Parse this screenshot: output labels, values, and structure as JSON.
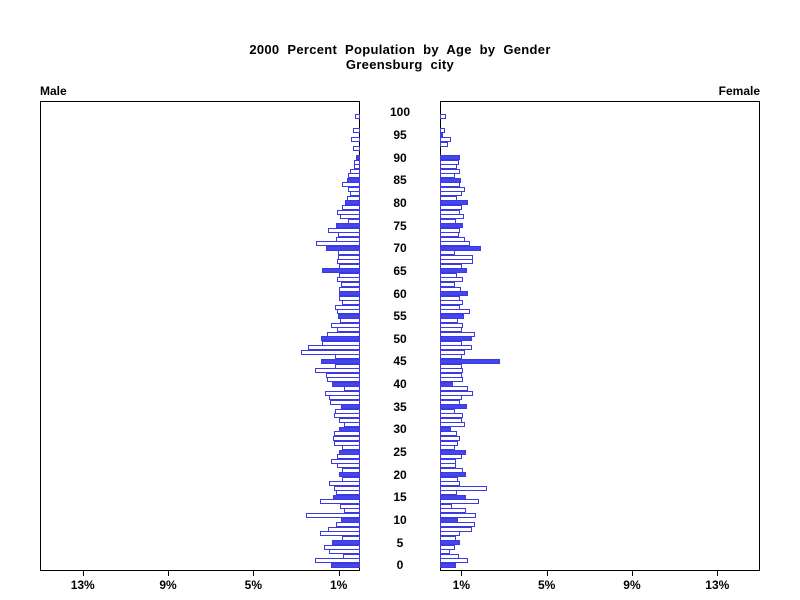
{
  "title": "2000 Percent Population by Age by Gender",
  "subtitle": "Greensburg city",
  "panel_labels": {
    "left": "Male",
    "right": "Female"
  },
  "colors": {
    "bar_fill": "#4545ee",
    "bar_outline": "#3a3ae0",
    "axis": "#000000",
    "background": "#ffffff"
  },
  "chart_data": {
    "type": "bar",
    "variant": "population-pyramid",
    "title": "2000 Percent Population by Age by Gender",
    "subtitle": "Greensburg city",
    "age_axis": {
      "min": 0,
      "max": 100,
      "tick_step": 5,
      "tick_labels": [
        "0",
        "5",
        "10",
        "15",
        "20",
        "25",
        "30",
        "35",
        "40",
        "45",
        "50",
        "55",
        "60",
        "65",
        "70",
        "75",
        "80",
        "85",
        "90",
        "95",
        "100"
      ]
    },
    "percent_axis": {
      "min": 0,
      "max": 15,
      "ticks": [
        1,
        5,
        9,
        13
      ],
      "tick_labels": [
        "1%",
        "5%",
        "9%",
        "13%"
      ]
    },
    "bar_style_note": "ages divisible by 5 are solid filled blue, other ages are white with blue outline",
    "series": [
      {
        "name": "Male",
        "side": "left",
        "ages": "index equals age 0-100",
        "values": [
          1.38,
          2.11,
          0.78,
          1.45,
          1.67,
          1.33,
          0.86,
          1.88,
          1.48,
          1.13,
          0.89,
          2.55,
          0.73,
          0.94,
          1.88,
          1.28,
          1.13,
          1.2,
          1.47,
          0.86,
          0.97,
          0.83,
          1.06,
          1.38,
          1.09,
          0.98,
          0.86,
          1.22,
          1.25,
          1.22,
          0.97,
          0.75,
          1.0,
          1.22,
          1.17,
          0.89,
          1.41,
          1.44,
          1.64,
          0.73,
          1.33,
          1.56,
          1.6,
          2.11,
          1.17,
          1.85,
          1.17,
          2.78,
          2.42,
          1.8,
          1.84,
          1.56,
          1.09,
          1.38,
          0.94,
          1.02,
          1.06,
          1.16,
          0.86,
          1.0,
          0.97,
          1.0,
          0.91,
          1.08,
          1.0,
          1.77,
          0.97,
          1.06,
          1.05,
          1.05,
          1.61,
          2.06,
          1.13,
          1.02,
          1.48,
          1.13,
          0.55,
          0.94,
          1.09,
          0.86,
          0.69,
          0.63,
          0.47,
          0.58,
          0.84,
          0.59,
          0.55,
          0.45,
          0.28,
          0.28,
          0.2,
          0,
          0.35,
          0,
          0.42,
          0,
          0.33,
          0,
          0,
          0.25,
          0
        ]
      },
      {
        "name": "Female",
        "side": "right",
        "ages": "index equals age 0-100",
        "values": [
          0.75,
          1.33,
          0.91,
          0.47,
          0.7,
          0.94,
          0.75,
          0.95,
          1.5,
          1.66,
          0.85,
          1.67,
          1.22,
          0.55,
          1.83,
          1.2,
          0.78,
          2.19,
          0.94,
          0.83,
          1.22,
          1.09,
          0.75,
          0.75,
          1.02,
          1.22,
          0.7,
          0.83,
          0.94,
          0.78,
          0.5,
          1.17,
          1.02,
          1.09,
          0.7,
          1.25,
          0.94,
          1.02,
          1.56,
          1.33,
          0.59,
          1.09,
          1.02,
          1.06,
          1.02,
          2.81,
          1.02,
          1.17,
          1.48,
          1.02,
          1.52,
          1.64,
          1.02,
          1.09,
          0.83,
          1.14,
          1.41,
          0.94,
          1.06,
          0.94,
          1.3,
          0.97,
          0.7,
          1.06,
          0.78,
          1.25,
          1.02,
          1.56,
          1.56,
          0.7,
          1.92,
          1.41,
          1.17,
          0.91,
          0.94,
          1.06,
          0.75,
          1.13,
          0.94,
          1.02,
          1.33,
          0.78,
          1.02,
          1.17,
          0.94,
          1.0,
          0.7,
          0.94,
          0.78,
          0.91,
          0.94,
          0,
          0,
          0.39,
          0.5,
          0.16,
          0.23,
          0,
          0,
          0.27,
          0
        ]
      }
    ]
  }
}
